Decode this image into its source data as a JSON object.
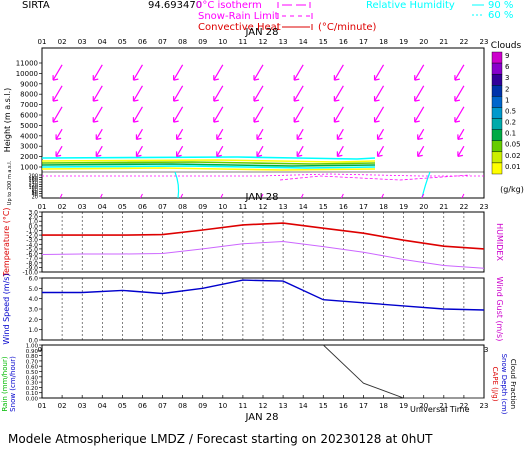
{
  "header": {
    "station": "SIRTA",
    "coords": "94.693470",
    "legend_isotherm": "0°C isotherm",
    "legend_snow_rain": "Snow-Rain Limit",
    "legend_convective": "Convective Heat",
    "legend_convective_unit": "(°C/minute)",
    "legend_rh": "Relative Humidity",
    "rh_90": "90 %",
    "rh_60": "60 %"
  },
  "hours": [
    "01",
    "02",
    "03",
    "04",
    "05",
    "06",
    "07",
    "08",
    "09",
    "10",
    "11",
    "12",
    "13",
    "14",
    "15",
    "16",
    "17",
    "18",
    "19",
    "20",
    "21",
    "22",
    "23"
  ],
  "date_label": "JAN 28",
  "footer": {
    "universal_time": "Universal Time",
    "model_line": "Modele Atmospherique LMDZ / Forecast starting on 20230128 at 0hUT"
  },
  "colors": {
    "magenta": "#ff00ff",
    "cyan": "#00ffff",
    "red": "#dd0000",
    "blue": "#0000cc",
    "violet": "#cc66ff",
    "black": "#000000"
  },
  "chart_data": [
    {
      "type": "heatmap",
      "panel": "upper-air",
      "ylabel": "Height (m a.s.l.)",
      "ylabel2": "Up to 200 m a.s.l.",
      "yticks": [
        "11000",
        "10000",
        "9000",
        "8000",
        "7000",
        "6000",
        "5000",
        "4000",
        "3000",
        "2000",
        "1000"
      ],
      "yticks_low": [
        "200",
        "180",
        "160",
        "140",
        "120",
        "100",
        "80",
        "60",
        "40",
        "20"
      ],
      "legend_title": "Clouds",
      "legend_unit": "(g/kg)",
      "legend_levels": [
        "9",
        "6",
        "3",
        "2",
        "1",
        "0.5",
        "0.2",
        "0.1",
        "0.05",
        "0.02",
        "0.01"
      ],
      "legend_colors": [
        "#ffff00",
        "#ccee00",
        "#66cc00",
        "#00aa44",
        "#00aaaa",
        "#0099cc",
        "#0066cc",
        "#0033aa",
        "#330099",
        "#8800cc",
        "#cc00cc"
      ],
      "wind_arrows": "magenta, pointing to lower-left"
    },
    {
      "type": "line",
      "panel": "temperature",
      "ylabel": "Temperature (°C)",
      "ylabel2": "HUMIDEX",
      "yticks": [
        "3.0",
        "2.0",
        "1.0",
        "0.0",
        "-1.0",
        "-2.0",
        "-3.0",
        "-4.0",
        "-5.0",
        "-6.0",
        "-7.0",
        "-8.0",
        "-9.0",
        "-10.0"
      ],
      "ylim": [
        -10,
        3
      ],
      "x": [
        1,
        3,
        5,
        7,
        9,
        11,
        13,
        15,
        17,
        19,
        21,
        23
      ],
      "series": [
        {
          "name": "Temperature",
          "values": [
            -2.0,
            -2.0,
            -2.0,
            -1.9,
            -0.9,
            0.2,
            0.6,
            -0.5,
            -1.6,
            -3.1,
            -4.4,
            -5.0
          ]
        },
        {
          "name": "HUMIDEX",
          "values": [
            -6.2,
            -6.1,
            -6.1,
            -6.0,
            -5.0,
            -3.9,
            -3.4,
            -4.5,
            -5.7,
            -7.3,
            -8.6,
            -9.2
          ]
        }
      ]
    },
    {
      "type": "line",
      "panel": "wind",
      "ylabel": "Wind Speed (m/s)",
      "ylabel2": "Wind Gust (m/s)",
      "yticks": [
        "6.0",
        "5.0",
        "4.0",
        "3.0",
        "2.0",
        "1.0",
        "0.0"
      ],
      "ylim": [
        0,
        6
      ],
      "x": [
        1,
        3,
        5,
        7,
        9,
        11,
        13,
        15,
        17,
        19,
        21,
        23
      ],
      "series": [
        {
          "name": "Wind Speed",
          "values": [
            4.6,
            4.6,
            4.8,
            4.5,
            5.0,
            5.8,
            5.7,
            3.9,
            3.6,
            3.3,
            3.0,
            2.9
          ]
        }
      ]
    },
    {
      "type": "line",
      "panel": "precipitation",
      "ylabel": "Rain (mm/hour)",
      "ylabel2": "Snow (cm/hour)",
      "ylabel3": "CAPE (J/g)",
      "ylabel4": "Snow Depth (cm)",
      "ylabel5": "Cloud Fraction",
      "yticks": [
        "1.00",
        "0.90",
        "0.80",
        "0.70",
        "0.60",
        "0.50",
        "0.40",
        "0.30",
        "0.20",
        "0.10",
        "0.00"
      ],
      "ylim": [
        0,
        1
      ],
      "x": [
        1,
        3,
        5,
        7,
        9,
        11,
        13,
        15,
        17,
        19,
        21,
        23
      ],
      "series": [
        {
          "name": "Cloud Fraction",
          "values": [
            null,
            null,
            null,
            null,
            null,
            null,
            null,
            1.0,
            0.28,
            0.0,
            0.0,
            0.0
          ]
        }
      ]
    }
  ]
}
